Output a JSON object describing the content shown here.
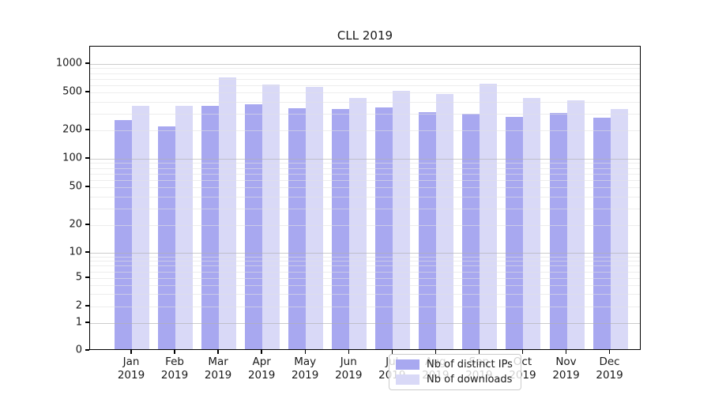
{
  "figure": {
    "background": "#ffffff"
  },
  "chart_data": {
    "type": "bar",
    "title": "CLL 2019",
    "categories": [
      "Jan 2019",
      "Feb 2019",
      "Mar 2019",
      "Apr 2019",
      "May 2019",
      "Jun 2019",
      "Jul 2019",
      "Aug 2019",
      "Sep 2019",
      "Oct 2019",
      "Nov 2019",
      "Dec 2019"
    ],
    "series": [
      {
        "name": "Nb of distinct IPs",
        "color": "#a8a8f0",
        "values": [
          245,
          210,
          350,
          365,
          330,
          325,
          335,
          300,
          285,
          265,
          295,
          260
        ]
      },
      {
        "name": "Nb of downloads",
        "color": "#d9d9f7",
        "values": [
          350,
          350,
          690,
          590,
          550,
          425,
          500,
          465,
          600,
          420,
          400,
          320
        ]
      }
    ],
    "xlabel": "",
    "ylabel": "",
    "yscale": "symlog",
    "yticks": [
      0,
      1,
      2,
      5,
      10,
      20,
      50,
      100,
      200,
      500,
      1000
    ],
    "ylim": [
      0,
      1500
    ],
    "grid": true,
    "legend_position": "lower center"
  },
  "legend": {
    "items": [
      {
        "label": "Nb of distinct IPs",
        "color": "#a8a8f0"
      },
      {
        "label": "Nb of downloads",
        "color": "#d9d9f7"
      }
    ]
  },
  "colors": {
    "distinct_ips": "#a8a8f0",
    "downloads": "#d9d9f7",
    "axis": "#000000",
    "text": "#1a1a1a",
    "grid_major": "rgba(176,176,176,0.65)",
    "grid_minor": "rgba(225,225,225,0.60)",
    "legend_border": "#cccccc"
  }
}
